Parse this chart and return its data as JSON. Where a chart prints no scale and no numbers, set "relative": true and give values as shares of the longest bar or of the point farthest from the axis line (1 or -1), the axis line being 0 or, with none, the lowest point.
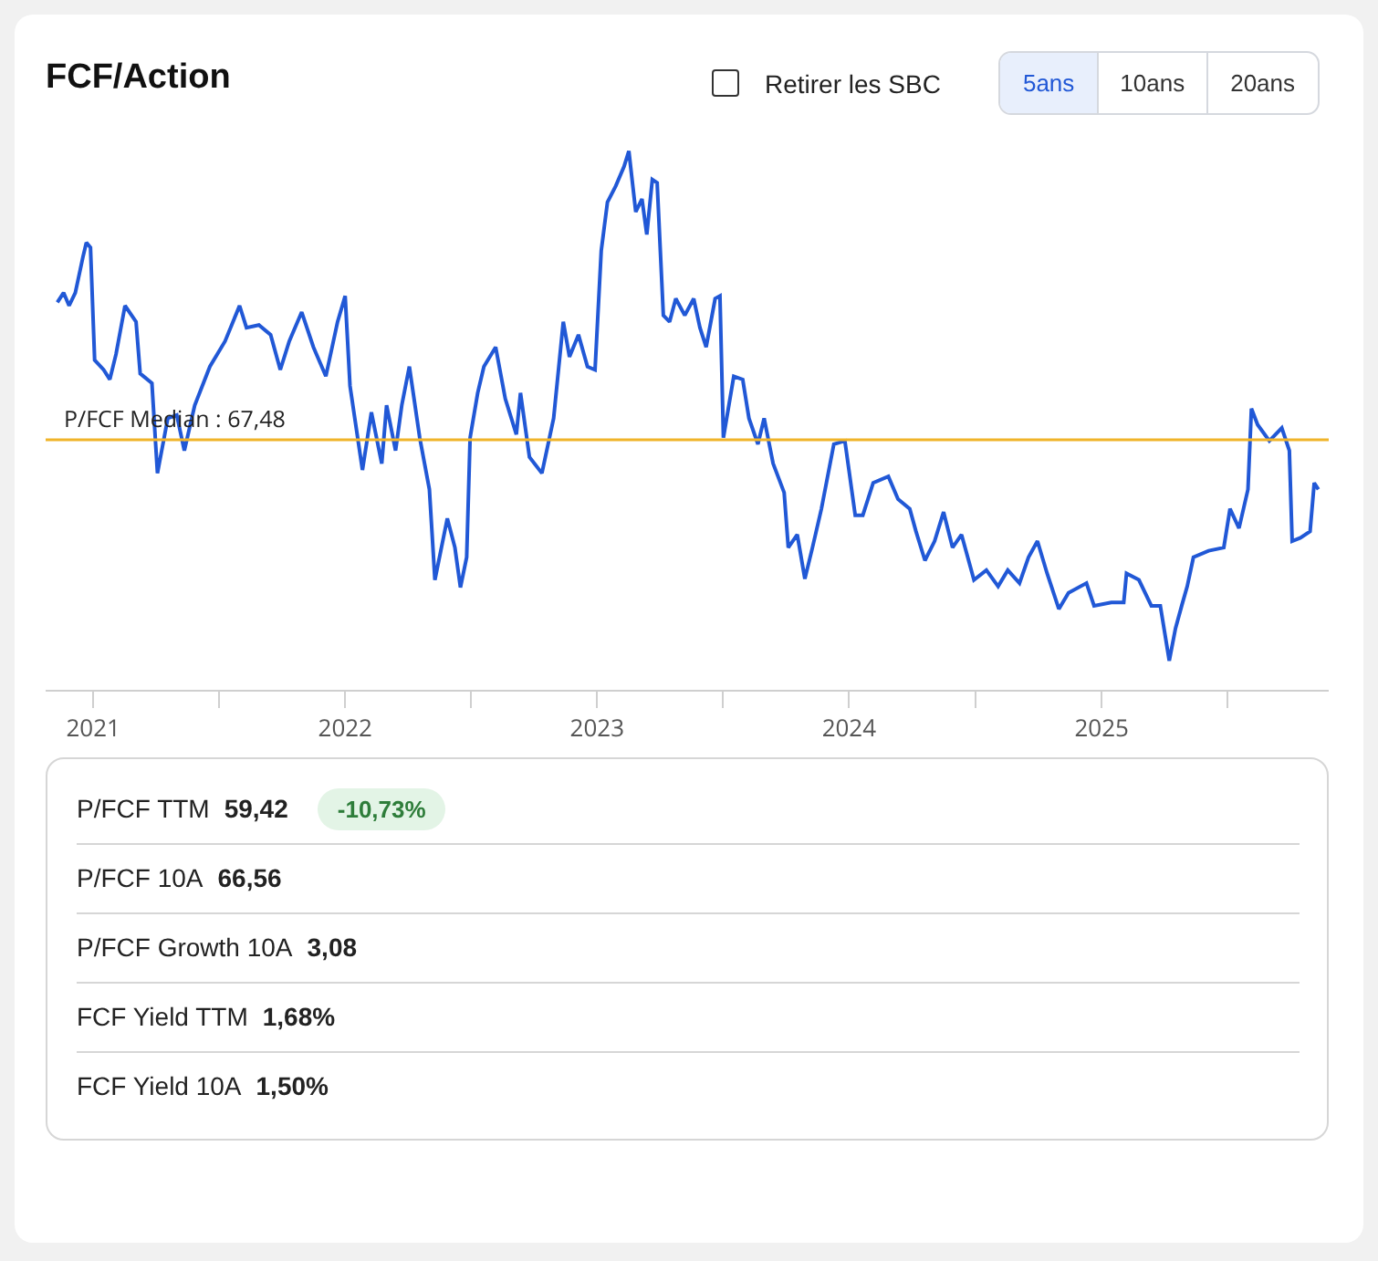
{
  "chart_data": [
    {
      "type": "line",
      "title": "FCF/Action",
      "relative": true,
      "tick_labels": "x",
      "color": "#2158d6",
      "annotations": [
        "P/FCF Median : 67,48",
        "Retirer les SBC",
        "5ans",
        "10ans",
        "20ans"
      ],
      "xlim": [
        "2020-10-24",
        "2025-11-26"
      ],
      "xticks": [
        {
          "value": "2021-01-01",
          "label": "2021"
        },
        {
          "value": "2021-07-02",
          "label": null
        },
        {
          "value": "2022-01-01",
          "label": "2022"
        },
        {
          "value": "2022-07-02",
          "label": null
        },
        {
          "value": "2023-01-01",
          "label": "2023"
        },
        {
          "value": "2023-07-02",
          "label": null
        },
        {
          "value": "2024-01-01",
          "label": "2024"
        },
        {
          "value": "2024-07-02",
          "label": null
        },
        {
          "value": "2025-01-01",
          "label": "2025"
        },
        {
          "value": "2025-07-02",
          "label": null
        }
      ],
      "ref_lines": [
        {
          "axis": "y",
          "value": 0.464,
          "color": "#f0b429"
        }
      ],
      "x": [
        "2020-11-10",
        "2020-11-19",
        "2020-11-27",
        "2020-12-06",
        "2020-12-17",
        "2020-12-22",
        "2020-12-28",
        "2021-01-03",
        "2021-01-16",
        "2021-01-25",
        "2021-02-03",
        "2021-02-16",
        "2021-03-04",
        "2021-03-10",
        "2021-03-27",
        "2021-04-04",
        "2021-04-19",
        "2021-05-02",
        "2021-05-13",
        "2021-05-28",
        "2021-06-19",
        "2021-07-11",
        "2021-08-01",
        "2021-08-11",
        "2021-08-29",
        "2021-09-15",
        "2021-09-29",
        "2021-10-12",
        "2021-10-30",
        "2021-11-16",
        "2021-12-04",
        "2021-12-21",
        "2022-01-01",
        "2022-01-08",
        "2022-01-26",
        "2022-02-08",
        "2022-02-23",
        "2022-03-02",
        "2022-03-15",
        "2022-03-24",
        "2022-04-04",
        "2022-04-19",
        "2022-05-03",
        "2022-05-11",
        "2022-05-29",
        "2022-06-09",
        "2022-06-17",
        "2022-06-26",
        "2022-07-01",
        "2022-07-12",
        "2022-07-21",
        "2022-08-07",
        "2022-08-21",
        "2022-09-06",
        "2022-09-12",
        "2022-09-25",
        "2022-10-13",
        "2022-10-30",
        "2022-11-13",
        "2022-11-22",
        "2022-12-05",
        "2022-12-18",
        "2022-12-29",
        "2023-01-07",
        "2023-01-16",
        "2023-01-28",
        "2023-02-09",
        "2023-02-16",
        "2023-02-26",
        "2023-03-07",
        "2023-03-14",
        "2023-03-22",
        "2023-03-29",
        "2023-04-07",
        "2023-04-16",
        "2023-04-25",
        "2023-05-08",
        "2023-05-21",
        "2023-05-30",
        "2023-06-08",
        "2023-06-21",
        "2023-06-28",
        "2023-07-03",
        "2023-07-18",
        "2023-07-31",
        "2023-08-09",
        "2023-08-22",
        "2023-08-31",
        "2023-09-13",
        "2023-09-29",
        "2023-10-05",
        "2023-10-18",
        "2023-10-29",
        "2023-11-09",
        "2023-11-22",
        "2023-12-10",
        "2023-12-26",
        "2024-01-10",
        "2024-01-21",
        "2024-02-05",
        "2024-02-27",
        "2024-03-12",
        "2024-03-29",
        "2024-04-07",
        "2024-04-20",
        "2024-05-04",
        "2024-05-17",
        "2024-05-30",
        "2024-06-12",
        "2024-06-30",
        "2024-07-18",
        "2024-08-04",
        "2024-08-18",
        "2024-09-04",
        "2024-09-17",
        "2024-09-30",
        "2024-10-14",
        "2024-10-31",
        "2024-11-14",
        "2024-12-10",
        "2024-12-21",
        "2025-01-15",
        "2025-02-02",
        "2025-02-06",
        "2025-02-24",
        "2025-03-14",
        "2025-03-27",
        "2025-04-09",
        "2025-04-18",
        "2025-04-27",
        "2025-05-05",
        "2025-05-14",
        "2025-06-05",
        "2025-06-27",
        "2025-07-06",
        "2025-07-19",
        "2025-08-01",
        "2025-08-06",
        "2025-08-15",
        "2025-09-01",
        "2025-09-19",
        "2025-09-30",
        "2025-10-04",
        "2025-10-16",
        "2025-10-30",
        "2025-11-05",
        "2025-11-11"
      ],
      "values": [
        0.719,
        0.737,
        0.713,
        0.737,
        0.803,
        0.83,
        0.821,
        0.612,
        0.594,
        0.576,
        0.623,
        0.713,
        0.683,
        0.587,
        0.569,
        0.402,
        0.504,
        0.51,
        0.444,
        0.528,
        0.6,
        0.647,
        0.713,
        0.672,
        0.677,
        0.659,
        0.594,
        0.647,
        0.701,
        0.636,
        0.582,
        0.683,
        0.731,
        0.564,
        0.408,
        0.515,
        0.42,
        0.528,
        0.444,
        0.528,
        0.6,
        0.468,
        0.372,
        0.204,
        0.318,
        0.264,
        0.19,
        0.246,
        0.468,
        0.551,
        0.6,
        0.636,
        0.54,
        0.474,
        0.551,
        0.432,
        0.402,
        0.504,
        0.683,
        0.618,
        0.659,
        0.6,
        0.594,
        0.815,
        0.905,
        0.935,
        0.971,
        1,
        0.887,
        0.911,
        0.845,
        0.947,
        0.941,
        0.695,
        0.683,
        0.726,
        0.695,
        0.726,
        0.672,
        0.636,
        0.726,
        0.731,
        0.468,
        0.582,
        0.576,
        0.504,
        0.456,
        0.504,
        0.42,
        0.366,
        0.264,
        0.288,
        0.206,
        0.264,
        0.336,
        0.456,
        0.462,
        0.324,
        0.324,
        0.384,
        0.396,
        0.354,
        0.336,
        0.294,
        0.24,
        0.276,
        0.33,
        0.264,
        0.288,
        0.204,
        0.222,
        0.192,
        0.222,
        0.198,
        0.246,
        0.276,
        0.216,
        0.15,
        0.18,
        0.198,
        0.156,
        0.162,
        0.162,
        0.216,
        0.204,
        0.156,
        0.156,
        0.054,
        0.114,
        0.156,
        0.192,
        0.246,
        0.258,
        0.264,
        0.336,
        0.3,
        0.372,
        0.522,
        0.492,
        0.462,
        0.486,
        0.444,
        0.276,
        0.282,
        0.294,
        0.384,
        0.372
      ]
    },
    {
      "type": "other",
      "categories": [
        "P/FCF TTM",
        "P/FCF 10A",
        "P/FCF Growth 10A",
        "FCF Yield TTM",
        "FCF Yield 10A"
      ],
      "value_labels": [
        "59,42",
        "66,56",
        "3,08",
        "1,68%",
        "1,50%"
      ],
      "annotations": [
        "-10,73%"
      ]
    }
  ]
}
